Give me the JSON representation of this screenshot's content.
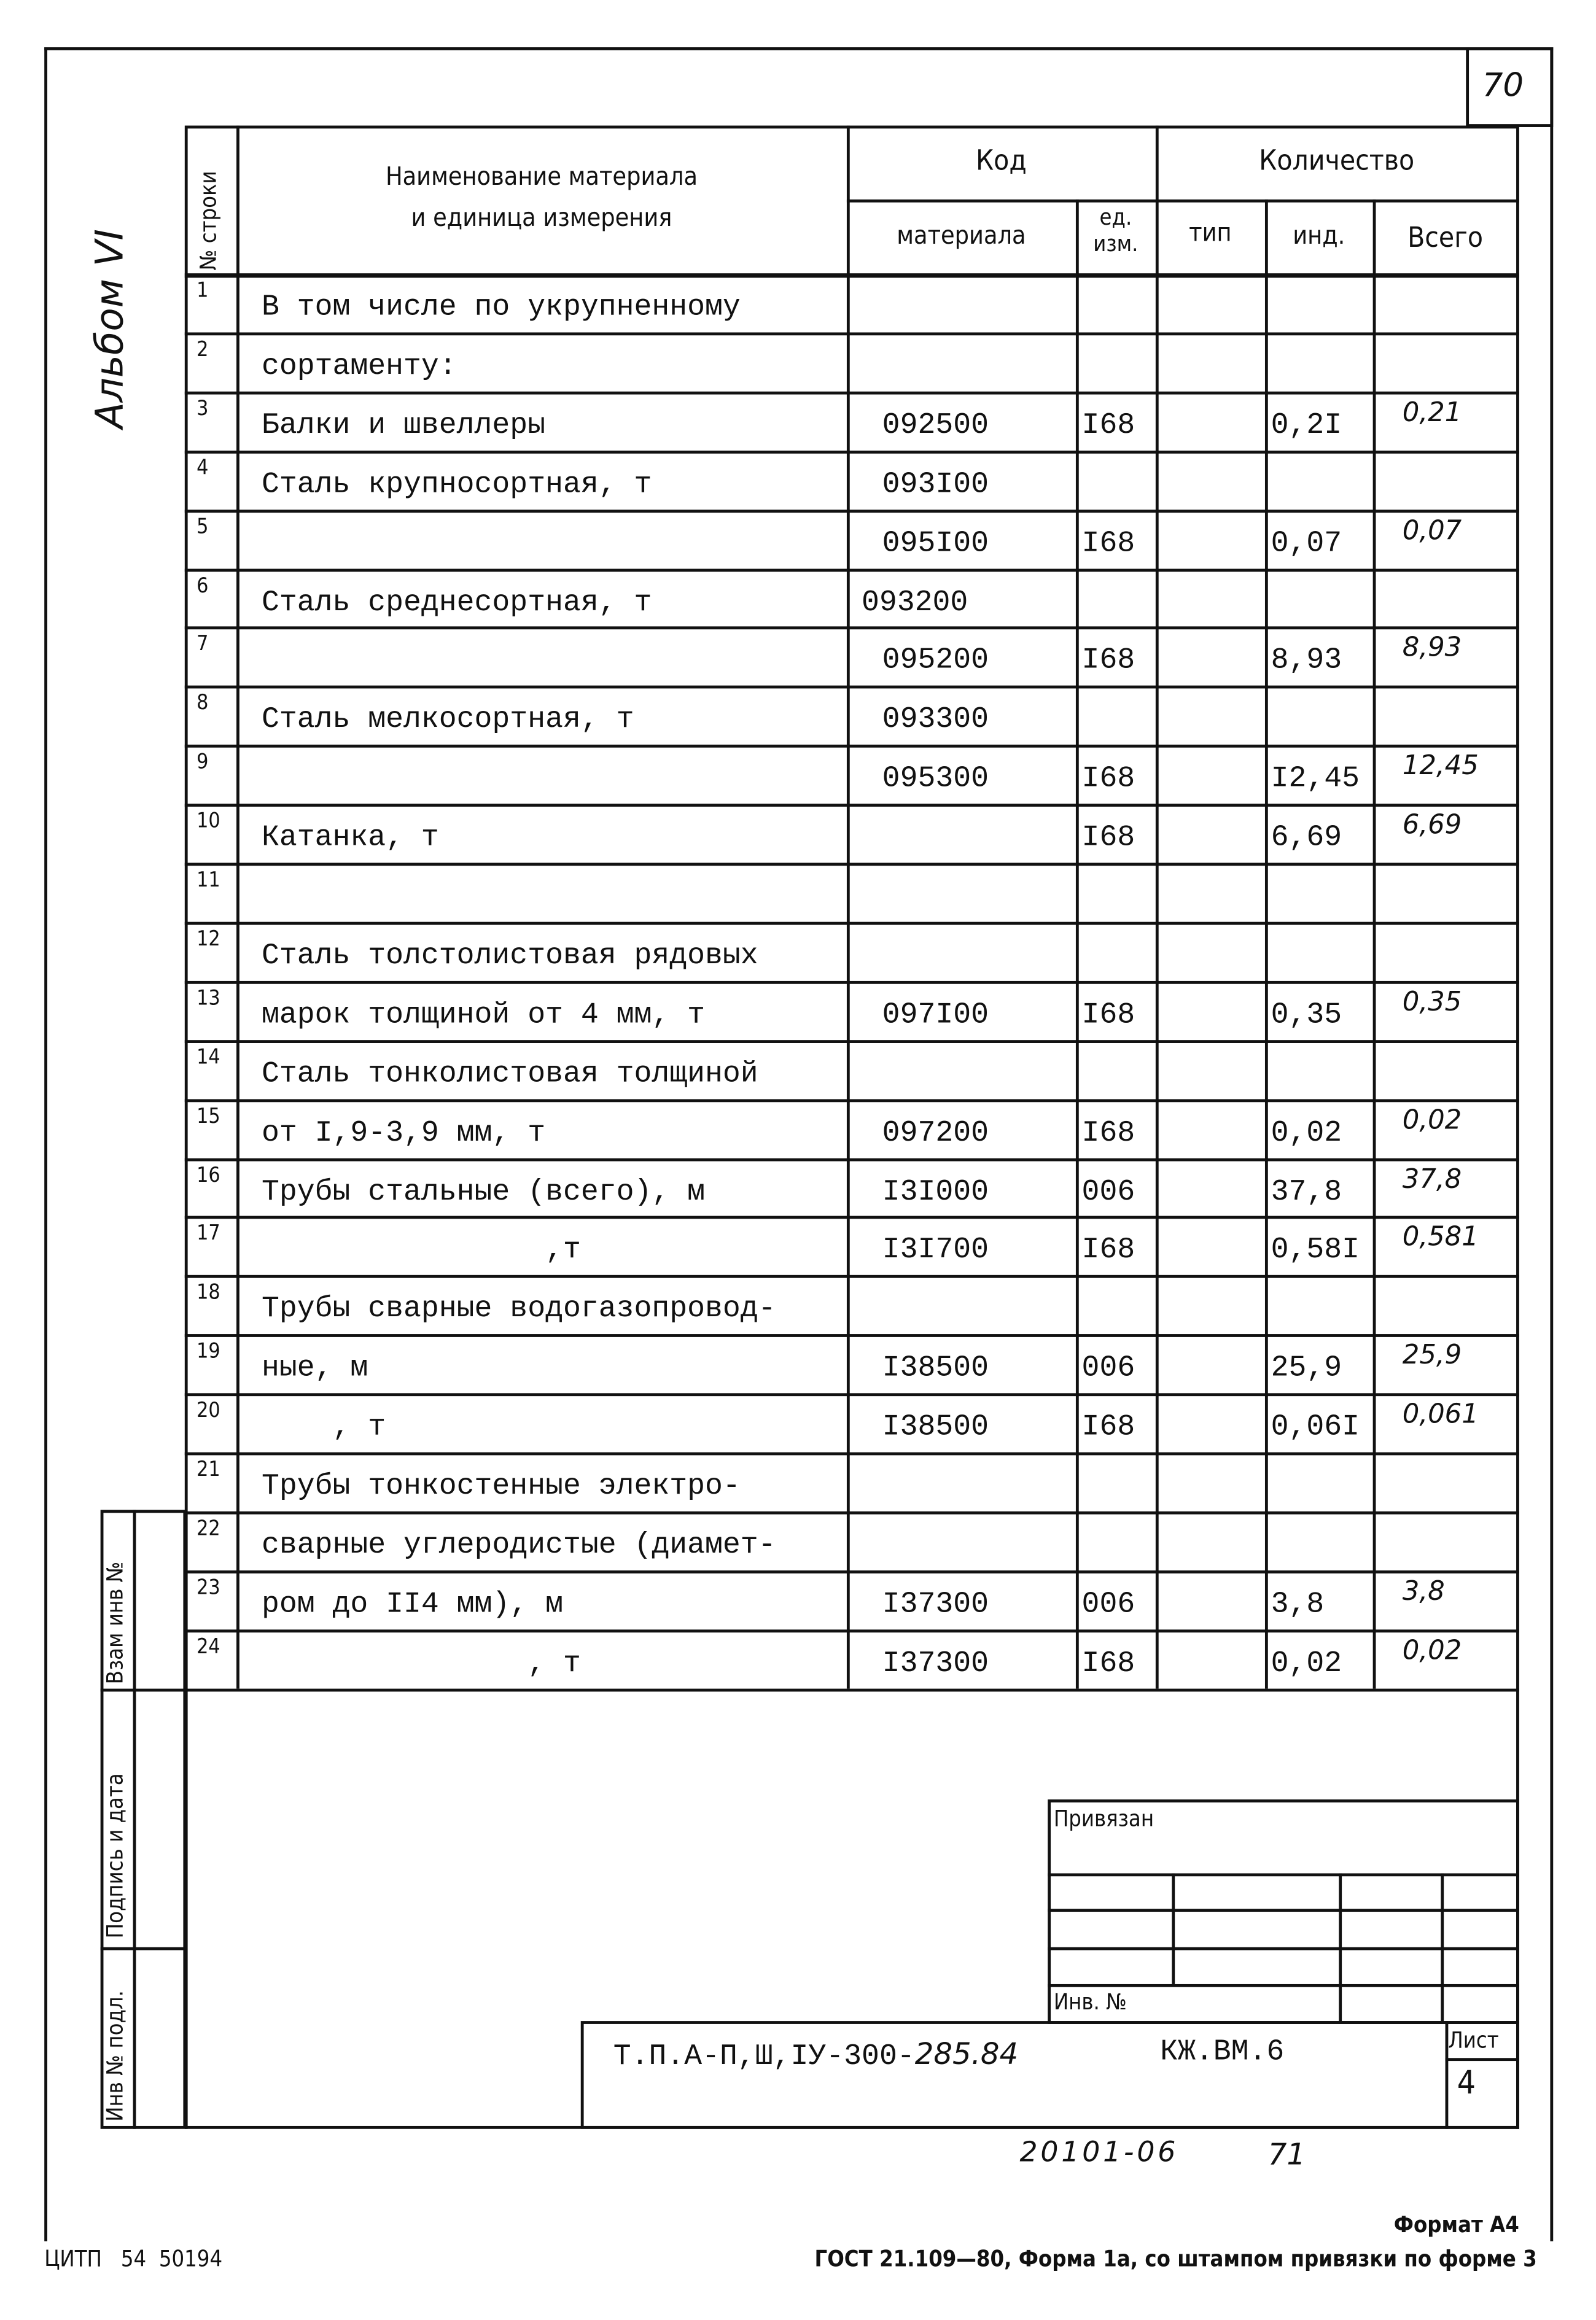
{
  "sheet_number_top": "70",
  "album_label": "Альбом VI",
  "header": {
    "row_no": "№ строки",
    "name": "Наименование материала",
    "name_line2": "и единица  измерения",
    "code": "Код",
    "code_material": "материала",
    "code_unit": "ед.",
    "code_unit_line2": "изм.",
    "quantity": "Количество",
    "qty_type": "тип",
    "qty_ind": "инд.",
    "qty_total": "Всего"
  },
  "rows": [
    {
      "no": "1",
      "name": "В том числе по укрупненному",
      "code": "",
      "unit": "",
      "type": "",
      "ind": "",
      "total": ""
    },
    {
      "no": "2",
      "name": "сортаменту:",
      "code": "",
      "unit": "",
      "type": "",
      "ind": "",
      "total": ""
    },
    {
      "no": "3",
      "name": "Балки и швеллеры",
      "code": "092500",
      "unit": "I68",
      "type": "",
      "ind": "0,2I",
      "total": "0,21"
    },
    {
      "no": "4",
      "name": "Сталь крупносортная, т",
      "code": "093I00",
      "unit": "",
      "type": "",
      "ind": "",
      "total": ""
    },
    {
      "no": "5",
      "name": "",
      "code": "095I00",
      "unit": "I68",
      "type": "",
      "ind": "0,07",
      "total": "0,07"
    },
    {
      "no": "6",
      "name": "Сталь среднесортная, т",
      "code": "093200",
      "unit": "",
      "type": "",
      "ind": "",
      "total": ""
    },
    {
      "no": "7",
      "name": "",
      "code": "095200",
      "unit": "I68",
      "type": "",
      "ind": "8,93",
      "total": "8,93"
    },
    {
      "no": "8",
      "name": "Сталь мелкосортная, т",
      "code": "093300",
      "unit": "",
      "type": "",
      "ind": "",
      "total": ""
    },
    {
      "no": "9",
      "name": "",
      "code": "095300",
      "unit": "I68",
      "type": "",
      "ind": "I2,45",
      "total": "12,45"
    },
    {
      "no": "10",
      "name": "Катанка, т",
      "code": "",
      "unit": "I68",
      "type": "",
      "ind": "6,69",
      "total": "6,69"
    },
    {
      "no": "11",
      "name": "",
      "code": "",
      "unit": "",
      "type": "",
      "ind": "",
      "total": ""
    },
    {
      "no": "12",
      "name": "Сталь толстолистовая рядовых",
      "code": "",
      "unit": "",
      "type": "",
      "ind": "",
      "total": ""
    },
    {
      "no": "13",
      "name": "марок толщиной от 4 мм, т",
      "code": "097I00",
      "unit": "I68",
      "type": "",
      "ind": "0,35",
      "total": "0,35"
    },
    {
      "no": "14",
      "name": "Сталь тонколистовая толщиной",
      "code": "",
      "unit": "",
      "type": "",
      "ind": "",
      "total": ""
    },
    {
      "no": "15",
      "name": "от I,9-3,9 мм, т",
      "code": "097200",
      "unit": "I68",
      "type": "",
      "ind": "0,02",
      "total": "0,02"
    },
    {
      "no": "16",
      "name": "Трубы стальные (всего), м",
      "code": "I3I000",
      "unit": "006",
      "type": "",
      "ind": "37,8",
      "total": "37,8"
    },
    {
      "no": "17",
      "name": "                ,т",
      "code": "I3I700",
      "unit": "I68",
      "type": "",
      "ind": "0,58I",
      "total": "0,581"
    },
    {
      "no": "18",
      "name": "Трубы сварные водогазопровод-",
      "code": "",
      "unit": "",
      "type": "",
      "ind": "",
      "total": ""
    },
    {
      "no": "19",
      "name": "ные, м",
      "code": "I38500",
      "unit": "006",
      "type": "",
      "ind": "25,9",
      "total": "25,9"
    },
    {
      "no": "20",
      "name": "    , т",
      "code": "I38500",
      "unit": "I68",
      "type": "",
      "ind": "0,06I",
      "total": "0,061"
    },
    {
      "no": "21",
      "name": "Трубы тонкостенные электро-",
      "code": "",
      "unit": "",
      "type": "",
      "ind": "",
      "total": ""
    },
    {
      "no": "22",
      "name": "сварные углеродистые (диамет-",
      "code": "",
      "unit": "",
      "type": "",
      "ind": "",
      "total": ""
    },
    {
      "no": "23",
      "name": "ром до II4 мм), м",
      "code": "I37300",
      "unit": "006",
      "type": "",
      "ind": "3,8",
      "total": "3,8"
    },
    {
      "no": "24",
      "name": "               , т",
      "code": "I37300",
      "unit": "I68",
      "type": "",
      "ind": "0,02",
      "total": "0,02"
    }
  ],
  "side_strip": {
    "replace_inv": "Взам  инв  №",
    "signature_date": "Подпись  и  дата",
    "inv_original": "Инв  №  подл."
  },
  "stamp": {
    "attached": "Привязан",
    "inv_no": "Инв. №",
    "doc_code": "Т.П.А-П,Ш,IУ-300-",
    "doc_code_hand": "285.84",
    "doc_mark": "КЖ.ВМ.6",
    "sheet_label": "Лист",
    "sheet_value": "4"
  },
  "below_stamp": {
    "archive_no": "20101-06",
    "page": "71"
  },
  "format": "Формат А4",
  "footer": {
    "left": "ЦИТП   54  50194",
    "right": "ГОСТ 21.109—80, Форма 1а,  со штампом привязки по форме 3"
  }
}
